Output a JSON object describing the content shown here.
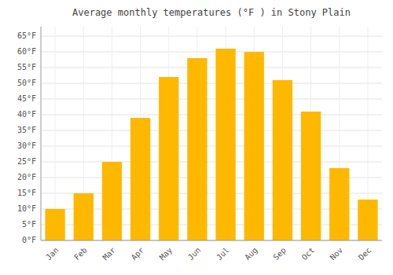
{
  "chart_data": {
    "type": "bar",
    "title": "Average monthly temperatures (°F ) in Stony Plain",
    "categories": [
      "Jan",
      "Feb",
      "Mar",
      "Apr",
      "May",
      "Jun",
      "Jul",
      "Aug",
      "Sep",
      "Oct",
      "Nov",
      "Dec"
    ],
    "values": [
      10,
      15,
      25,
      39,
      52,
      58,
      61,
      60,
      51,
      41,
      23,
      13
    ],
    "color": "#FFB800",
    "ylim": [
      0,
      68
    ],
    "yticks": [
      {
        "value": 0,
        "label": "0°F"
      },
      {
        "value": 5,
        "label": "5°F"
      },
      {
        "value": 10,
        "label": "10°F"
      },
      {
        "value": 15,
        "label": "15°F"
      },
      {
        "value": 20,
        "label": "20°F"
      },
      {
        "value": 25,
        "label": "25°F"
      },
      {
        "value": 30,
        "label": "30°F"
      },
      {
        "value": 35,
        "label": "35°F"
      },
      {
        "value": 40,
        "label": "40°F"
      },
      {
        "value": 45,
        "label": "45°F"
      },
      {
        "value": 50,
        "label": "50°F"
      },
      {
        "value": 55,
        "label": "55°F"
      },
      {
        "value": 60,
        "label": "60°F"
      },
      {
        "value": 65,
        "label": "65°F"
      }
    ],
    "grid": true
  }
}
